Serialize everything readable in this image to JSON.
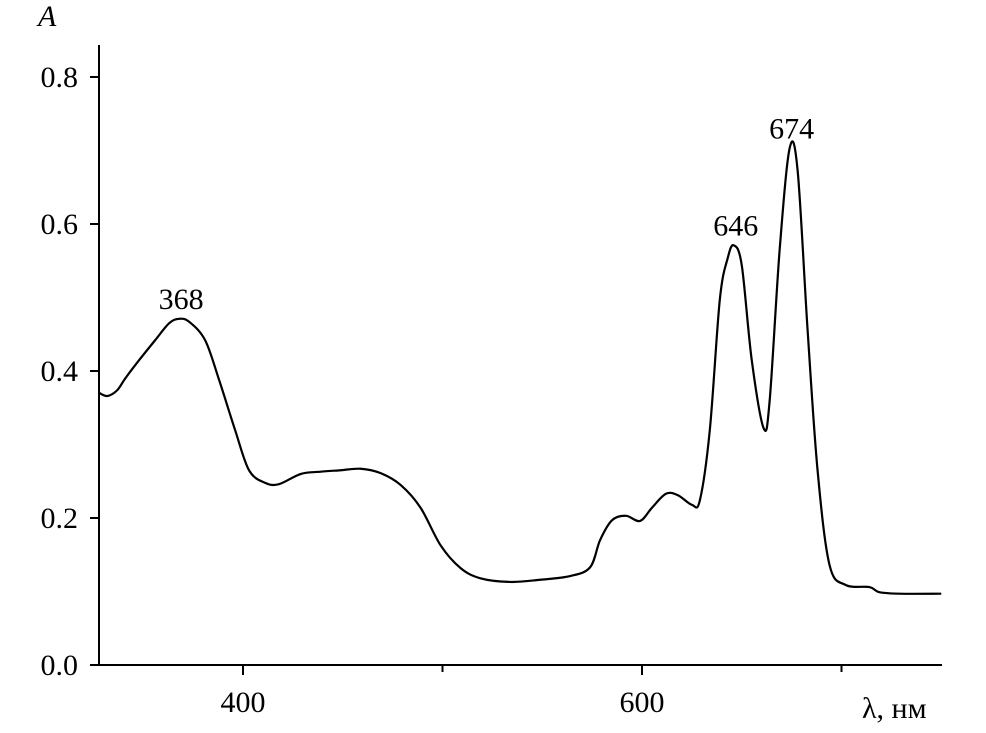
{
  "chart_data": {
    "type": "line",
    "title": "",
    "xlabel": "λ, нм",
    "ylabel": "A",
    "xlim": [
      328,
      750
    ],
    "ylim": [
      0,
      0.85
    ],
    "xticks_major": [
      400,
      600
    ],
    "xticks_minor": [
      500,
      700
    ],
    "yticks": [
      "0.0",
      "0.2",
      "0.4",
      "0.6",
      "0.8"
    ],
    "grid": false,
    "annotations": [
      {
        "text": "368",
        "x": 368,
        "y": 0.471
      },
      {
        "text": "646",
        "x": 646,
        "y": 0.571
      },
      {
        "text": "674",
        "x": 674,
        "y": 0.703
      }
    ],
    "series": [
      {
        "color": "#000000",
        "x": [
          328,
          332,
          337,
          341,
          348,
          356,
          363,
          368,
          373,
          381,
          388,
          396,
          403,
          411,
          418,
          429,
          439,
          449,
          459,
          469,
          479,
          489,
          499,
          509,
          519,
          534,
          549,
          564,
          574,
          579,
          585,
          592,
          599,
          605,
          612,
          618,
          625,
          629,
          634,
          639,
          643,
          646,
          650,
          655,
          661,
          664,
          669,
          674,
          678,
          683,
          688,
          694,
          702,
          714,
          719,
          729,
          750
        ],
        "y": [
          0.37,
          0.366,
          0.374,
          0.39,
          0.415,
          0.442,
          0.465,
          0.471,
          0.467,
          0.442,
          0.388,
          0.32,
          0.265,
          0.248,
          0.246,
          0.26,
          0.263,
          0.265,
          0.267,
          0.261,
          0.245,
          0.214,
          0.163,
          0.132,
          0.118,
          0.113,
          0.116,
          0.121,
          0.133,
          0.17,
          0.197,
          0.203,
          0.196,
          0.214,
          0.233,
          0.231,
          0.218,
          0.224,
          0.32,
          0.497,
          0.554,
          0.571,
          0.544,
          0.415,
          0.322,
          0.36,
          0.565,
          0.703,
          0.673,
          0.456,
          0.265,
          0.136,
          0.109,
          0.106,
          0.099,
          0.097,
          0.097
        ]
      }
    ]
  }
}
